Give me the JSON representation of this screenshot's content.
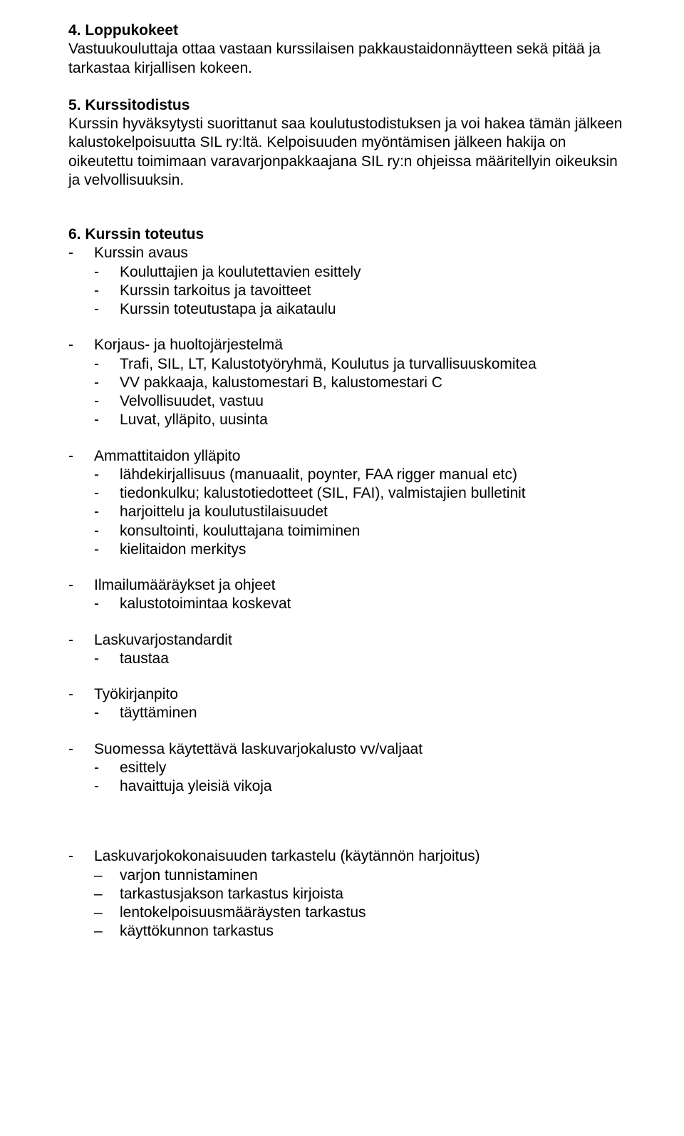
{
  "s4": {
    "heading": "4. Loppukokeet",
    "p1": "Vastuukouluttaja ottaa vastaan kurssilaisen pakkaustaidonnäytteen sekä pitää ja tarkastaa kirjallisen kokeen."
  },
  "s5": {
    "heading": "5. Kurssitodistus",
    "p1": "Kurssin hyväksytysti suorittanut saa koulutustodistuksen ja voi hakea tämän jälkeen kalustokelpoisuutta SIL ry:ltä. Kelpoisuuden myöntämisen jälkeen hakija on oikeutettu toimimaan varavarjonpakkaajana SIL ry:n ohjeissa määritellyin oikeuksin ja velvollisuuksin."
  },
  "s6": {
    "heading": "6. Kurssin toteutus",
    "avaus": {
      "title": "Kurssin avaus",
      "items": [
        "Kouluttajien ja koulutettavien esittely",
        "Kurssin tarkoitus ja tavoitteet",
        "Kurssin toteutustapa ja aikataulu"
      ]
    },
    "korjaus": {
      "title": "Korjaus- ja huoltojärjestelmä",
      "items": [
        "Trafi, SIL, LT, Kalustotyöryhmä, Koulutus ja turvallisuuskomitea",
        "VV pakkaaja, kalustomestari B, kalustomestari C",
        "Velvollisuudet, vastuu",
        "Luvat, ylläpito, uusinta"
      ]
    },
    "ammatti": {
      "title": "Ammattitaidon ylläpito",
      "items": [
        "lähdekirjallisuus (manuaalit, poynter, FAA rigger manual etc)",
        "tiedonkulku; kalustotiedotteet (SIL, FAI), valmistajien bulletinit",
        "harjoittelu ja koulutustilaisuudet",
        "konsultointi, kouluttajana toimiminen",
        "kielitaidon merkitys"
      ]
    },
    "ilmailu": {
      "title": "Ilmailumääräykset ja ohjeet",
      "items": [
        "kalustotoimintaa koskevat"
      ]
    },
    "laskuvarjo": {
      "title": "Laskuvarjostandardit",
      "items": [
        "taustaa"
      ]
    },
    "tyokirja": {
      "title": "Työkirjanpito",
      "items": [
        "täyttäminen"
      ]
    },
    "suomessa": {
      "title": "Suomessa käytettävä laskuvarjokalusto vv/valjaat",
      "items": [
        "esittely",
        "havaittuja yleisiä vikoja"
      ]
    },
    "kokonaisuus": {
      "title": "Laskuvarjokokonaisuuden tarkastelu (käytännön harjoitus)",
      "items": [
        "varjon tunnistaminen",
        "tarkastusjakson tarkastus kirjoista",
        "lentokelpoisuusmääräysten tarkastus",
        "käyttökunnon tarkastus"
      ]
    }
  }
}
